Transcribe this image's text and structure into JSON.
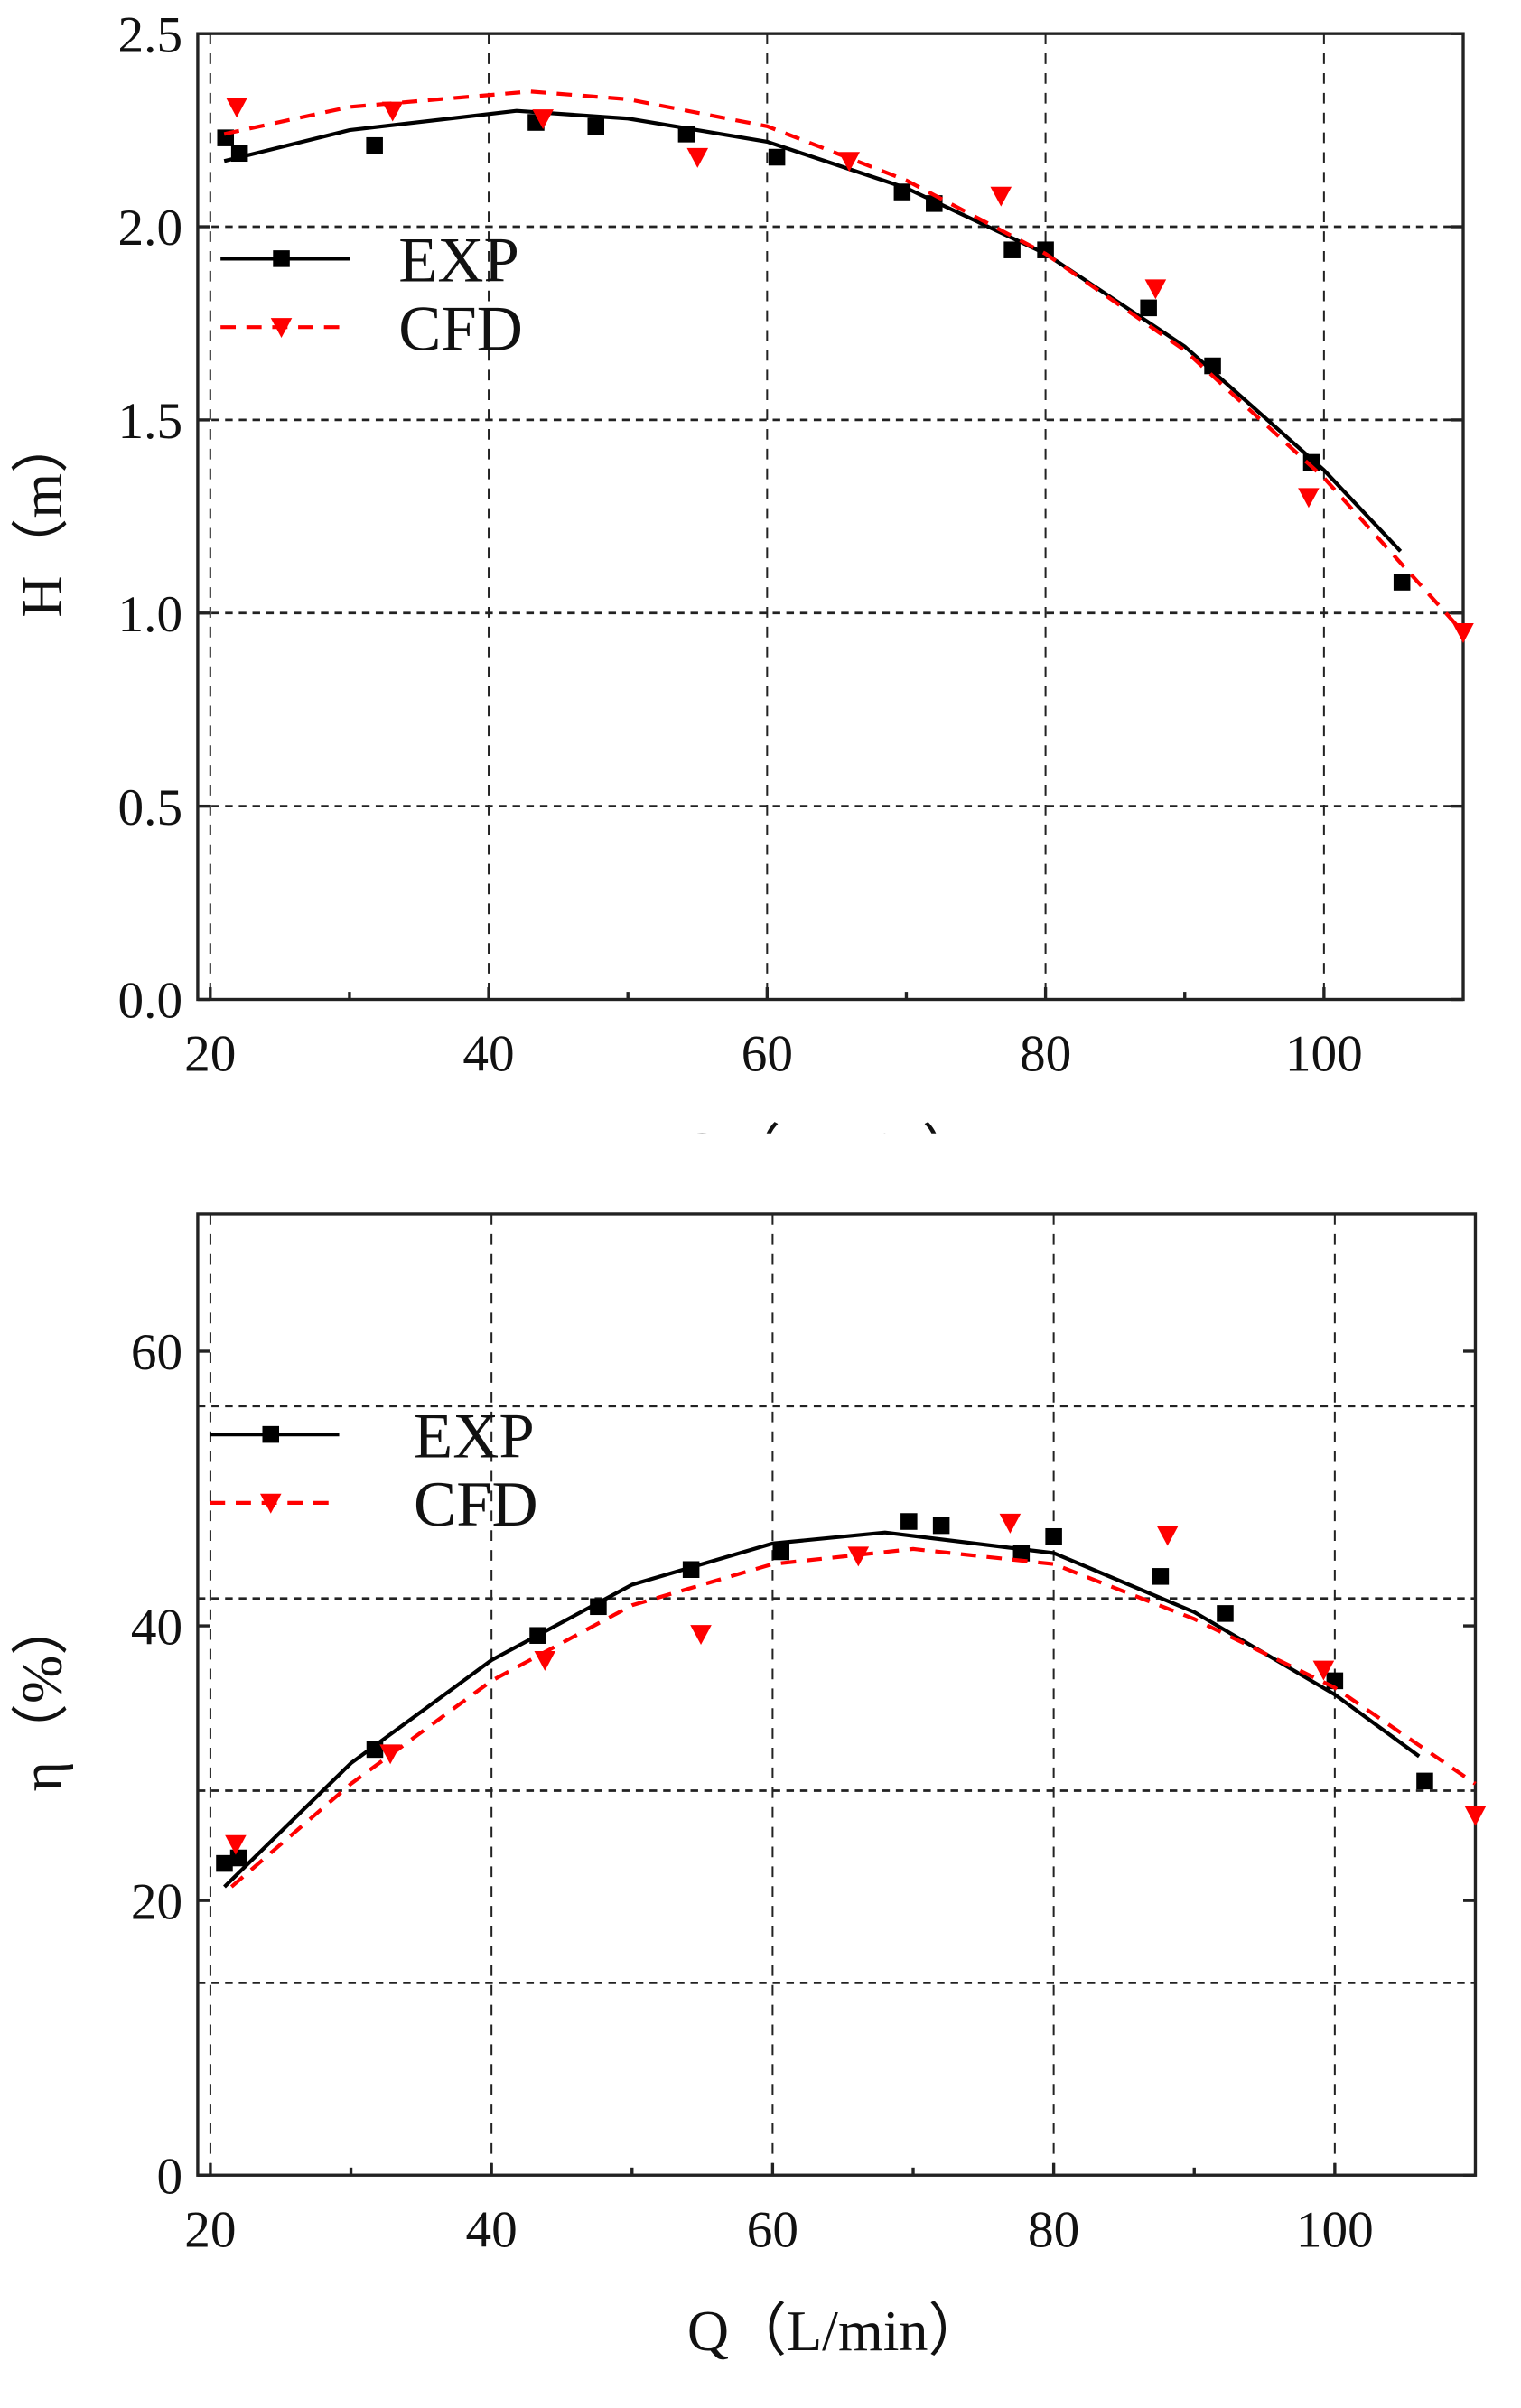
{
  "chart_data": [
    {
      "type": "line",
      "xlabel": "Q（L/min）",
      "ylabel": "H（m）",
      "xlim": [
        19.1,
        110
      ],
      "ylim": [
        0,
        2.5
      ],
      "xticks": [
        20,
        40,
        60,
        80,
        100
      ],
      "yticks": [
        "0.0",
        "0.5",
        "1.0",
        "1.5",
        "2.0",
        "2.5"
      ],
      "ygrid": [
        0.5,
        1.0,
        1.5,
        2.0
      ],
      "grid": true,
      "legend_position": "upper-left",
      "series": [
        {
          "name": "EXP",
          "color": "#000000",
          "marker": "square",
          "line": "solid",
          "points": [
            [
              21.1,
              2.23
            ],
            [
              22.1,
              2.19
            ],
            [
              31.8,
              2.21
            ],
            [
              43.4,
              2.27
            ],
            [
              47.7,
              2.26
            ],
            [
              54.2,
              2.24
            ],
            [
              60.7,
              2.18
            ],
            [
              69.7,
              2.09
            ],
            [
              72.0,
              2.06
            ],
            [
              77.6,
              1.94
            ],
            [
              80.0,
              1.94
            ],
            [
              87.4,
              1.79
            ],
            [
              92.0,
              1.64
            ],
            [
              99.1,
              1.39
            ],
            [
              105.6,
              1.08
            ]
          ],
          "fit": [
            [
              21,
              2.17
            ],
            [
              30,
              2.25
            ],
            [
              42,
              2.3
            ],
            [
              50,
              2.28
            ],
            [
              60,
              2.22
            ],
            [
              70,
              2.1
            ],
            [
              80,
              1.93
            ],
            [
              90,
              1.69
            ],
            [
              100,
              1.37
            ],
            [
              105.5,
              1.16
            ]
          ]
        },
        {
          "name": "CFD",
          "color": "#ff0000",
          "marker": "triangle-down",
          "line": "dashed",
          "points": [
            [
              21.9,
              2.31
            ],
            [
              33.1,
              2.3
            ],
            [
              43.9,
              2.28
            ],
            [
              55.0,
              2.18
            ],
            [
              65.9,
              2.17
            ],
            [
              76.8,
              2.08
            ],
            [
              87.9,
              1.84
            ],
            [
              98.9,
              1.3
            ],
            [
              110,
              0.95
            ]
          ],
          "fit": [
            [
              21,
              2.24
            ],
            [
              30,
              2.31
            ],
            [
              43,
              2.35
            ],
            [
              50,
              2.33
            ],
            [
              60,
              2.26
            ],
            [
              70,
              2.12
            ],
            [
              80,
              1.93
            ],
            [
              90,
              1.68
            ],
            [
              100,
              1.35
            ],
            [
              110,
              0.95
            ]
          ]
        }
      ]
    },
    {
      "type": "line",
      "xlabel": "Q（L/min）",
      "ylabel": "η（%）",
      "xlim": [
        19.1,
        110
      ],
      "ylim": [
        0,
        70
      ],
      "xticks": [
        20,
        40,
        60,
        80,
        100
      ],
      "yticks": [
        "0",
        "20",
        "40",
        "60"
      ],
      "ygrid": [
        14,
        28,
        42,
        56
      ],
      "grid": true,
      "legend_position": "upper-left",
      "series": [
        {
          "name": "EXP",
          "color": "#000000",
          "marker": "square",
          "line": "solid",
          "points": [
            [
              21.0,
              22.7
            ],
            [
              22.0,
              23.1
            ],
            [
              31.7,
              31.0
            ],
            [
              43.3,
              39.3
            ],
            [
              47.6,
              41.4
            ],
            [
              54.2,
              44.1
            ],
            [
              60.6,
              45.4
            ],
            [
              69.7,
              47.6
            ],
            [
              72.0,
              47.3
            ],
            [
              77.7,
              45.3
            ],
            [
              80.0,
              46.5
            ],
            [
              87.6,
              43.6
            ],
            [
              92.2,
              40.9
            ],
            [
              100.0,
              36.0
            ],
            [
              106.4,
              28.7
            ]
          ],
          "fit": [
            [
              21,
              21
            ],
            [
              30,
              30
            ],
            [
              40,
              37.5
            ],
            [
              50,
              43
            ],
            [
              60,
              46
            ],
            [
              68,
              46.8
            ],
            [
              80,
              45.3
            ],
            [
              90,
              41
            ],
            [
              100,
              35
            ],
            [
              106,
              30.5
            ]
          ]
        },
        {
          "name": "CFD",
          "color": "#ff0000",
          "marker": "triangle-down",
          "line": "dashed",
          "points": [
            [
              21.8,
              24.1
            ],
            [
              32.8,
              30.7
            ],
            [
              43.8,
              37.5
            ],
            [
              54.9,
              39.4
            ],
            [
              66.1,
              45.1
            ],
            [
              76.9,
              47.5
            ],
            [
              88.1,
              46.6
            ],
            [
              99.2,
              36.8
            ],
            [
              110,
              26.2
            ]
          ],
          "fit": [
            [
              21.5,
              21
            ],
            [
              30,
              28.5
            ],
            [
              40,
              36
            ],
            [
              50,
              41.5
            ],
            [
              60,
              44.5
            ],
            [
              70,
              45.6
            ],
            [
              80,
              44.5
            ],
            [
              90,
              40.5
            ],
            [
              100,
              35.5
            ],
            [
              110,
              28.5
            ]
          ]
        }
      ]
    }
  ]
}
